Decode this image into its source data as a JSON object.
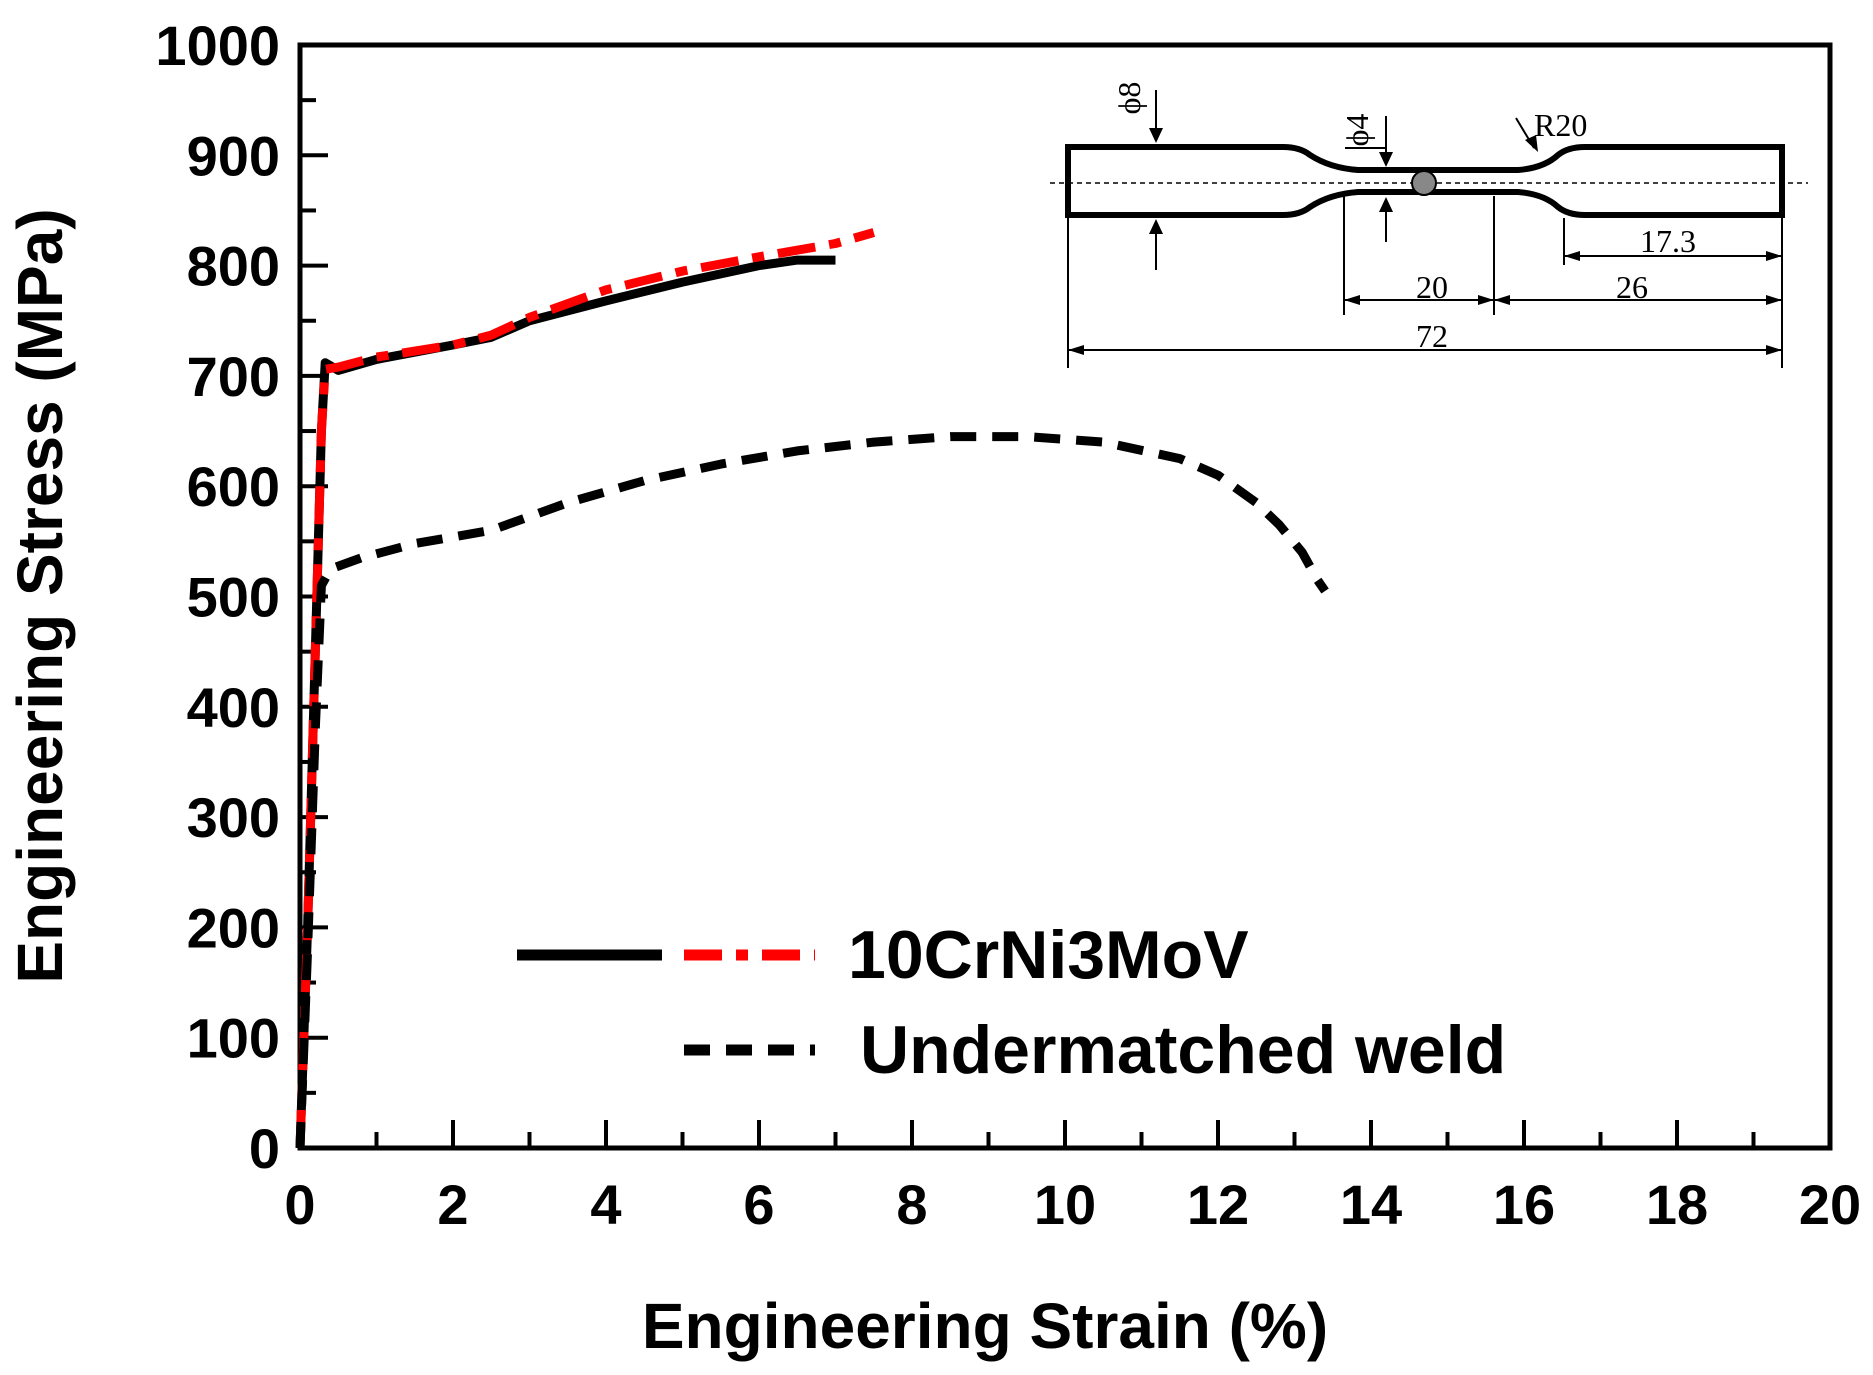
{
  "chart_data": {
    "type": "line",
    "title": "",
    "xlabel": "Engineering Strain (%)",
    "ylabel": "Engineering Stress (MPa)",
    "xlim": [
      0,
      20
    ],
    "ylim": [
      0,
      1000
    ],
    "xticks": [
      "0",
      "2",
      "4",
      "6",
      "8",
      "10",
      "12",
      "14",
      "16",
      "18",
      "20"
    ],
    "yticks": [
      "0",
      "100",
      "200",
      "300",
      "400",
      "500",
      "600",
      "700",
      "800",
      "900",
      "1000"
    ],
    "grid": false,
    "legend": {
      "placement": "bottom-center",
      "entries": [
        {
          "label": "10CrNi3MoV",
          "series": [
            "base-solid",
            "base-dashdot"
          ]
        },
        {
          "label": "Undermatched weld",
          "series": [
            "weld-dashed"
          ]
        }
      ]
    },
    "series": [
      {
        "id": "base-solid",
        "name": "10CrNi3MoV",
        "style": "solid",
        "color": "#000000",
        "x": [
          0,
          0.1,
          0.2,
          0.28,
          0.33,
          0.5,
          1,
          2,
          2.5,
          3,
          4,
          5,
          6,
          6.5,
          7
        ],
        "y": [
          0,
          200,
          450,
          650,
          712,
          705,
          715,
          728,
          735,
          750,
          768,
          785,
          800,
          805,
          805
        ]
      },
      {
        "id": "base-dashdot",
        "name": "10CrNi3MoV",
        "style": "dashdot",
        "color": "#ff0000",
        "x": [
          0,
          0.1,
          0.2,
          0.28,
          0.33,
          0.5,
          1,
          2,
          2.5,
          3,
          4,
          5,
          6,
          7,
          7.5
        ],
        "y": [
          0,
          200,
          450,
          650,
          706,
          708,
          717,
          728,
          737,
          753,
          778,
          795,
          808,
          820,
          830
        ]
      },
      {
        "id": "weld-dashed",
        "name": "Undermatched weld",
        "style": "dashed",
        "color": "#000000",
        "x": [
          0,
          0.1,
          0.2,
          0.28,
          0.4,
          0.8,
          1.5,
          2.5,
          3.5,
          4.5,
          5.5,
          6.5,
          7.5,
          8.5,
          9.5,
          10.5,
          11.5,
          12.0,
          12.5,
          12.8,
          13.1,
          13.3,
          13.4
        ],
        "y": [
          0,
          180,
          380,
          510,
          525,
          535,
          548,
          560,
          585,
          605,
          620,
          632,
          640,
          645,
          645,
          640,
          625,
          610,
          585,
          565,
          540,
          515,
          505
        ]
      }
    ],
    "inset": {
      "description_labels": [
        "ϕ8",
        "ϕ4",
        "R20",
        "17.3",
        "20",
        "26",
        "72"
      ]
    }
  }
}
